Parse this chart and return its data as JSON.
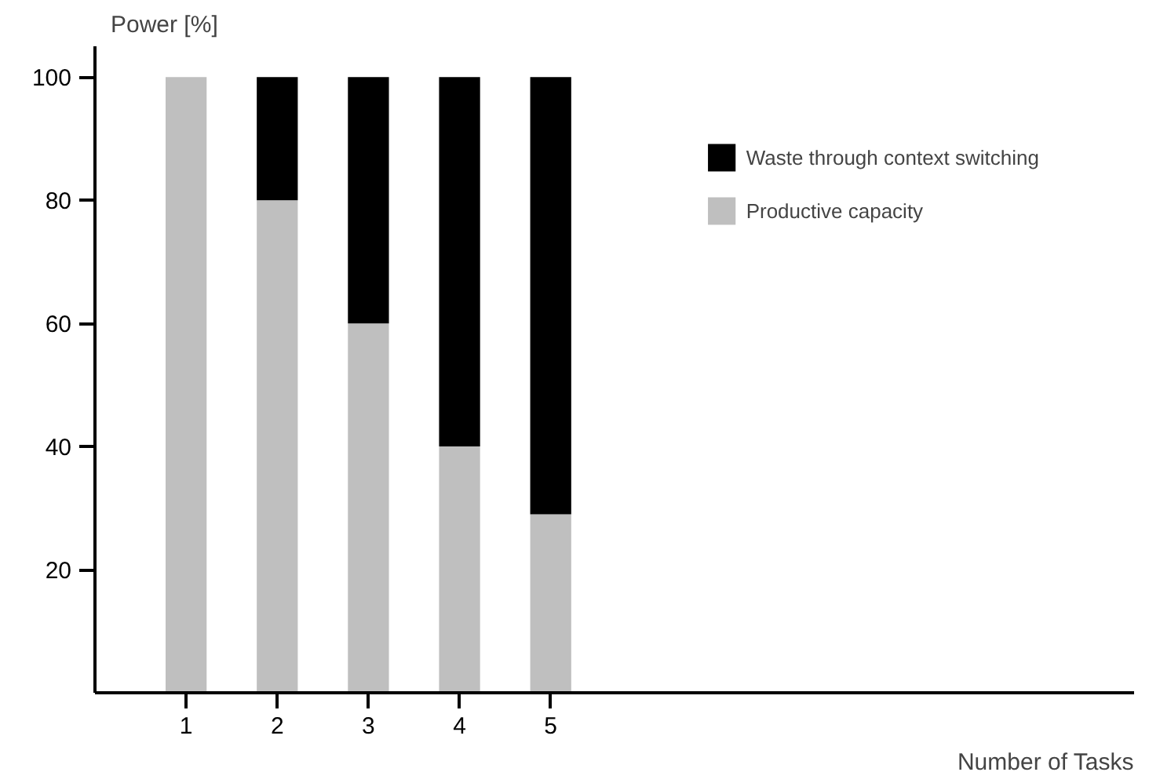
{
  "chart_data": {
    "type": "bar",
    "stacked": true,
    "x": [
      1,
      2,
      3,
      4,
      5
    ],
    "series": [
      {
        "name": "Productive capacity",
        "color": "#bfbfbf",
        "values": [
          100,
          80,
          60,
          40,
          29
        ]
      },
      {
        "name": "Waste through context switching",
        "color": "#000000",
        "values": [
          0,
          20,
          40,
          60,
          71
        ]
      }
    ],
    "xlabel": "Number of Tasks",
    "ylabel": "Power [%]",
    "xlim": [
      0,
      11.4
    ],
    "xticks": [
      1,
      2,
      3,
      4,
      5
    ],
    "ylim": [
      0,
      105
    ],
    "yticks": [
      20,
      40,
      60,
      80,
      100
    ],
    "grid": false,
    "legend": "top right"
  }
}
